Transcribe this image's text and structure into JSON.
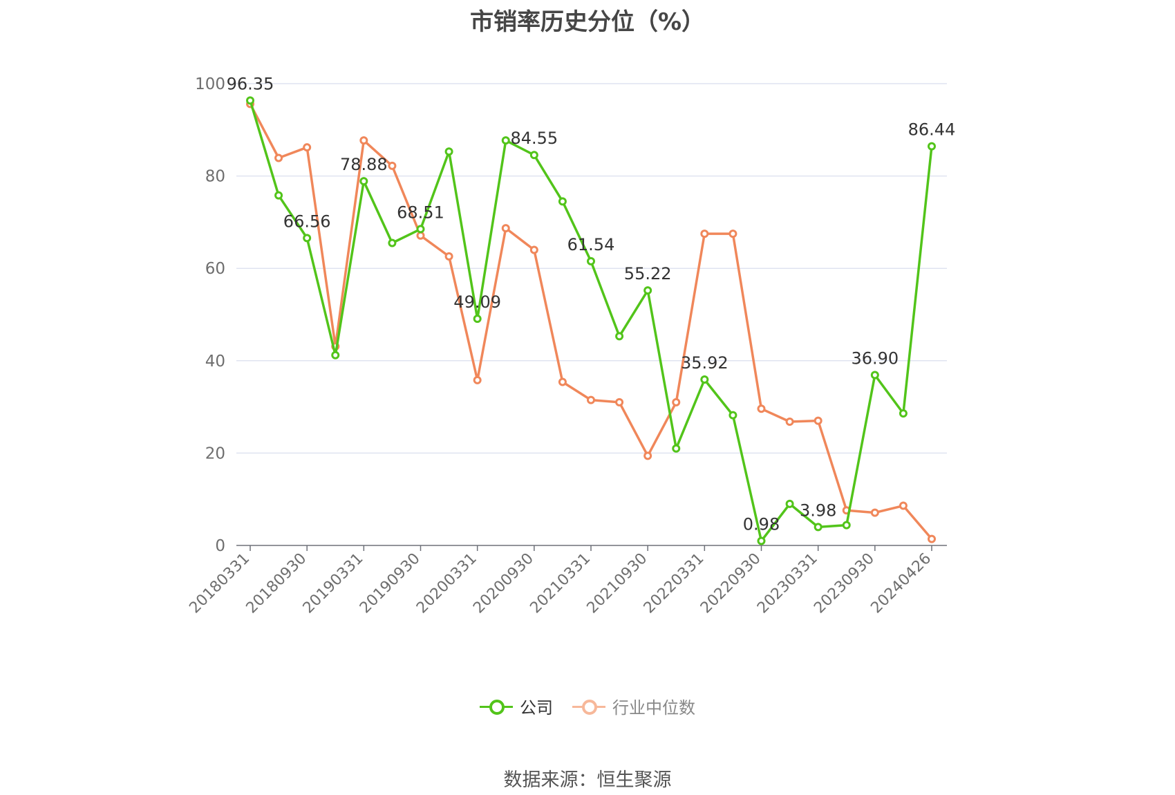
{
  "chart_data": {
    "type": "line",
    "title": "市销率历史分位（%）",
    "ylim": [
      0,
      100
    ],
    "y_ticks": [
      "0",
      "20",
      "40",
      "60",
      "80",
      "100"
    ],
    "x_tick_labels": [
      "20180331",
      "20180930",
      "20190331",
      "20190930",
      "20200331",
      "20200930",
      "20210331",
      "20210930",
      "20220331",
      "20220930",
      "20230331",
      "20230930",
      "20240426"
    ],
    "grid": true,
    "legend_position": "bottom",
    "x": [
      "20180331",
      "20180630",
      "20180930",
      "20181231",
      "20190331",
      "20190630",
      "20190930",
      "20191231",
      "20200331",
      "20200630",
      "20200930",
      "20201231",
      "20210331",
      "20210630",
      "20210930",
      "20211231",
      "20220331",
      "20220630",
      "20220930",
      "20221231",
      "20230331",
      "20230630",
      "20230930",
      "20231231",
      "20240426"
    ],
    "series": [
      {
        "name": "公司",
        "color": "#52c41a",
        "values": [
          96.35,
          75.8,
          66.56,
          41.2,
          78.88,
          65.5,
          68.51,
          85.3,
          49.09,
          87.7,
          84.55,
          74.5,
          61.54,
          45.3,
          55.22,
          21.0,
          35.92,
          28.2,
          0.98,
          9.0,
          3.98,
          4.4,
          36.9,
          28.6,
          86.44
        ],
        "data_labels": [
          "96.35",
          "",
          "66.56",
          "",
          "78.88",
          "",
          "68.51",
          "",
          "49.09",
          "",
          "84.55",
          "",
          "61.54",
          "",
          "55.22",
          "",
          "35.92",
          "",
          "0.98",
          "",
          "3.98",
          "",
          "36.90",
          "",
          "86.44"
        ]
      },
      {
        "name": "行业中位数",
        "color": "#f0875a",
        "values": [
          95.6,
          83.9,
          86.2,
          43.1,
          87.7,
          82.2,
          67.1,
          62.6,
          35.8,
          68.7,
          64.0,
          35.4,
          31.5,
          31.0,
          19.4,
          31.0,
          67.5,
          67.5,
          29.6,
          26.8,
          27.0,
          7.6,
          7.1,
          8.6,
          1.4
        ]
      }
    ]
  },
  "source_text": "数据来源：恒生聚源"
}
